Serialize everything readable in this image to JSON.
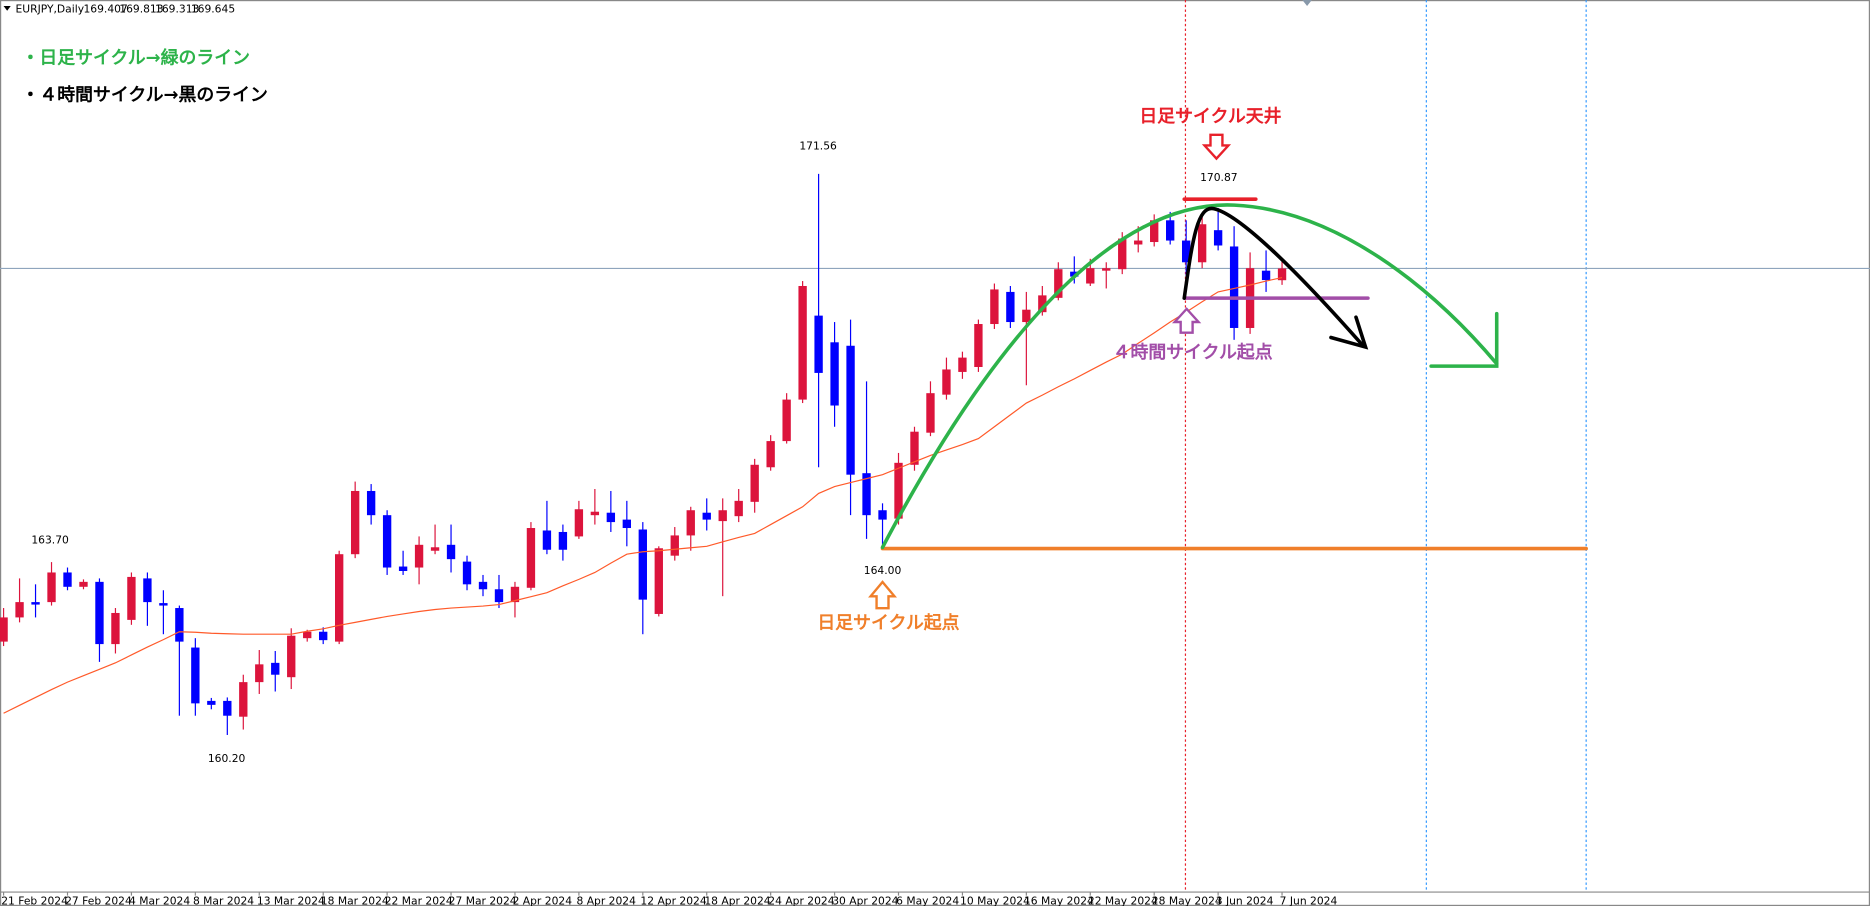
{
  "chart_data": {
    "type": "candlestick",
    "title": "EURJPY,Daily",
    "categories": [
      "21 Feb 2024",
      null,
      null,
      null,
      "27 Feb 2024",
      null,
      null,
      null,
      "4 Mar 2024",
      null,
      null,
      null,
      "8 Mar 2024",
      null,
      null,
      null,
      "13 Mar 2024",
      null,
      null,
      null,
      "18 Mar 2024",
      null,
      null,
      null,
      "22 Mar 2024",
      null,
      null,
      null,
      "27 Mar 2024",
      null,
      null,
      null,
      "2 Apr 2024",
      null,
      null,
      null,
      "8 Apr 2024",
      null,
      null,
      null,
      "12 Apr 2024",
      null,
      null,
      null,
      "18 Apr 2024",
      null,
      null,
      null,
      "24 Apr 2024",
      null,
      null,
      null,
      "30 Apr 2024",
      null,
      null,
      null,
      "6 May 2024",
      null,
      null,
      null,
      "10 May 2024",
      null,
      null,
      null,
      "16 May 2024",
      null,
      null,
      null,
      "22 May 2024",
      null,
      null,
      null,
      "28 May 2024",
      null,
      null,
      null,
      "3 Jun 2024",
      null,
      null,
      null,
      "7 Jun 2024"
    ],
    "open": [
      162.09,
      162.58,
      162.89,
      162.89,
      163.49,
      163.2,
      163.3,
      162.04,
      162.53,
      163.37,
      162.87,
      162.77,
      161.97,
      160.89,
      160.89,
      160.57,
      161.27,
      161.66,
      161.37,
      162.16,
      162.29,
      162.09,
      163.86,
      165.14,
      164.65,
      163.61,
      163.59,
      163.93,
      164.05,
      163.71,
      163.3,
      163.15,
      162.89,
      163.18,
      164.34,
      164.31,
      164.22,
      164.65,
      164.7,
      164.56,
      164.36,
      162.65,
      163.83,
      164.24,
      164.7,
      164.53,
      164.63,
      164.92,
      165.62,
      166.15,
      166.99,
      168.69,
      168.15,
      168.08,
      165.5,
      164.75,
      164.58,
      165.67,
      166.32,
      167.09,
      167.55,
      167.65,
      168.52,
      169.17,
      168.56,
      168.76,
      169.05,
      169.58,
      169.34,
      169.6,
      169.63,
      170.13,
      170.18,
      170.62,
      170.21,
      169.77,
      170.42,
      170.09,
      168.44,
      169.6,
      169.407
    ],
    "high": [
      162.77,
      163.37,
      163.25,
      163.7,
      163.59,
      163.35,
      163.37,
      162.77,
      163.49,
      163.49,
      163.13,
      162.82,
      162.16,
      160.95,
      160.96,
      161.42,
      161.92,
      161.9,
      162.36,
      162.33,
      162.38,
      163.93,
      165.33,
      165.28,
      164.75,
      163.93,
      164.22,
      164.46,
      164.46,
      163.83,
      163.44,
      163.44,
      163.3,
      164.51,
      164.94,
      164.46,
      164.94,
      165.18,
      165.14,
      164.94,
      164.51,
      164.02,
      164.41,
      164.82,
      164.99,
      164.99,
      165.18,
      165.79,
      166.27,
      167.12,
      169.39,
      171.56,
      168.56,
      168.61,
      167.36,
      164.89,
      165.91,
      166.44,
      167.36,
      167.84,
      167.96,
      168.61,
      169.34,
      169.29,
      169.17,
      169.29,
      169.77,
      169.89,
      169.84,
      169.77,
      170.38,
      170.5,
      170.74,
      170.79,
      170.62,
      170.69,
      170.87,
      170.5,
      169.97,
      170.01,
      169.813
    ],
    "low": [
      162.0,
      162.48,
      162.58,
      162.82,
      163.13,
      163.15,
      161.68,
      161.85,
      162.43,
      162.41,
      162.24,
      160.59,
      160.59,
      160.72,
      160.2,
      160.31,
      161.03,
      161.08,
      161.13,
      162.09,
      162.04,
      162.04,
      163.78,
      164.46,
      163.44,
      163.44,
      163.25,
      163.86,
      163.49,
      163.13,
      163.01,
      162.77,
      162.58,
      163.13,
      163.86,
      163.73,
      164.17,
      164.46,
      164.31,
      164.02,
      162.24,
      162.6,
      163.73,
      163.93,
      164.34,
      163.01,
      164.51,
      164.7,
      165.55,
      166.1,
      166.92,
      165.62,
      166.44,
      164.65,
      164.17,
      164.0,
      164.46,
      165.55,
      166.25,
      166.99,
      167.41,
      167.55,
      168.42,
      168.44,
      167.28,
      168.69,
      169.0,
      169.34,
      169.29,
      169.24,
      169.53,
      169.97,
      170.09,
      170.13,
      169.48,
      169.65,
      170.01,
      168.2,
      168.32,
      169.17,
      169.313
    ],
    "close": [
      162.58,
      162.89,
      162.84,
      163.49,
      163.2,
      163.3,
      162.04,
      162.67,
      163.4,
      162.89,
      162.82,
      162.09,
      160.84,
      160.81,
      160.59,
      161.27,
      161.63,
      161.42,
      162.21,
      162.29,
      162.12,
      163.86,
      165.14,
      164.65,
      163.59,
      163.52,
      164.05,
      164.0,
      163.76,
      163.25,
      163.15,
      162.89,
      163.2,
      164.39,
      163.95,
      163.95,
      164.77,
      164.72,
      164.51,
      164.39,
      162.94,
      163.98,
      164.24,
      164.75,
      164.56,
      164.75,
      164.94,
      165.67,
      166.15,
      166.99,
      169.29,
      167.53,
      166.87,
      165.47,
      164.65,
      164.56,
      165.71,
      166.34,
      167.12,
      167.6,
      167.84,
      168.52,
      169.22,
      168.56,
      168.81,
      169.1,
      169.63,
      169.48,
      169.65,
      169.65,
      170.25,
      170.21,
      170.62,
      170.21,
      169.77,
      170.54,
      170.11,
      168.44,
      169.65,
      169.41,
      169.645
    ],
    "up_color": "#dc143c",
    "down_color": "#0000ff",
    "ylim": [
      157.02,
      175.08
    ],
    "overlay": {
      "color": "#ff5a2a",
      "values": [
        160.64,
        160.8,
        160.96,
        161.12,
        161.27,
        161.4,
        161.53,
        161.66,
        161.82,
        161.98,
        162.13,
        162.29,
        162.28,
        162.26,
        162.25,
        162.24,
        162.24,
        162.24,
        162.24,
        162.3,
        162.35,
        162.42,
        162.48,
        162.54,
        162.6,
        162.65,
        162.7,
        162.74,
        162.77,
        162.79,
        162.81,
        162.84,
        162.92,
        163.0,
        163.08,
        163.22,
        163.35,
        163.49,
        163.68,
        163.86,
        163.91,
        163.93,
        163.96,
        163.99,
        164.02,
        164.11,
        164.2,
        164.28,
        164.46,
        164.64,
        164.82,
        165.09,
        165.23,
        165.31,
        165.39,
        165.47,
        165.6,
        165.73,
        165.86,
        165.97,
        166.08,
        166.2,
        166.44,
        166.68,
        166.92,
        167.08,
        167.25,
        167.41,
        167.58,
        167.75,
        167.91,
        168.13,
        168.34,
        168.56,
        168.76,
        168.97,
        169.17,
        169.24,
        169.31,
        169.39,
        169.46
      ]
    },
    "price_labels": [
      {
        "value": 171.56,
        "label": "171.56"
      },
      {
        "value": 170.87,
        "label": "170.87"
      },
      {
        "value": 164,
        "label": "164.00"
      },
      {
        "value": 163.7,
        "label": "163.70"
      },
      {
        "value": 160.2,
        "label": "160.20"
      }
    ],
    "notes": [
      {
        "text": "・日足サイクル→緑のライン",
        "color": "#2db34a"
      },
      {
        "text": "・４時間サイクル→黒のライン",
        "color": "#000000"
      }
    ],
    "callouts": [
      {
        "text": "日足サイクル天井",
        "color": "#e8202a"
      },
      {
        "text": "４時間サイクル起点",
        "color": "#a24ea8"
      },
      {
        "text": "日足サイクル起点",
        "color": "#f07f2a"
      }
    ]
  }
}
